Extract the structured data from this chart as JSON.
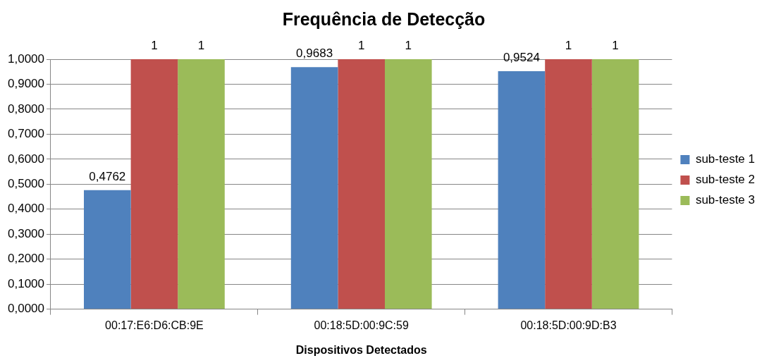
{
  "chart_data": {
    "type": "bar",
    "title": "Frequência de Detecção",
    "xlabel": "Dispositivos Detectados",
    "categories": [
      "00:17:E6:D6:CB:9E",
      "00:18:5D:00:9C:59",
      "00:18:5D:00:9D:B3"
    ],
    "series": [
      {
        "name": "sub-teste 1",
        "color": "#4f81bd",
        "values": [
          0.4762,
          0.9683,
          0.9524
        ],
        "value_labels": [
          "0,4762",
          "0,9683",
          "0,9524"
        ]
      },
      {
        "name": "sub-teste 2",
        "color": "#c0504d",
        "values": [
          1,
          1,
          1
        ],
        "value_labels": [
          "1",
          "1",
          "1"
        ]
      },
      {
        "name": "sub-teste 3",
        "color": "#9bbb59",
        "values": [
          1,
          1,
          1
        ],
        "value_labels": [
          "1",
          "1",
          "1"
        ]
      }
    ],
    "ylim": [
      0,
      1
    ],
    "yticks": [
      {
        "value": 0,
        "label": "0,0000"
      },
      {
        "value": 0.1,
        "label": "0,1000"
      },
      {
        "value": 0.2,
        "label": "0,2000"
      },
      {
        "value": 0.3,
        "label": "0,3000"
      },
      {
        "value": 0.4,
        "label": "0,4000"
      },
      {
        "value": 0.5,
        "label": "0,5000"
      },
      {
        "value": 0.6,
        "label": "0,6000"
      },
      {
        "value": 0.7,
        "label": "0,7000"
      },
      {
        "value": 0.8,
        "label": "0,8000"
      },
      {
        "value": 0.9,
        "label": "0,9000"
      },
      {
        "value": 1,
        "label": "1,0000"
      }
    ],
    "grid": "y",
    "legend": "right"
  }
}
